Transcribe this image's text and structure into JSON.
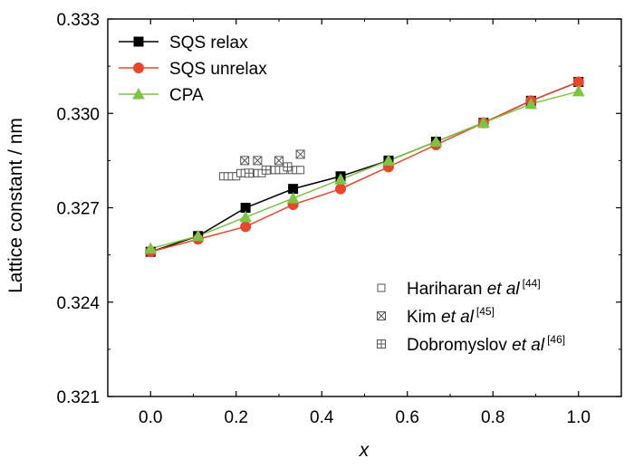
{
  "chart_data": {
    "type": "line",
    "title": "",
    "xlabel": "x",
    "ylabel": "Lattice constant / nm",
    "xlim": [
      -0.1,
      1.1
    ],
    "ylim": [
      0.321,
      0.333
    ],
    "xticks": [
      0.0,
      0.2,
      0.4,
      0.6,
      0.8,
      1.0
    ],
    "xtick_labels": [
      "0.0",
      "0.2",
      "0.4",
      "0.6",
      "0.8",
      "1.0"
    ],
    "yticks": [
      0.321,
      0.324,
      0.327,
      0.33,
      0.333
    ],
    "ytick_labels": [
      "0.321",
      "0.324",
      "0.327",
      "0.330",
      "0.333"
    ],
    "grid": false,
    "legend_position": "top-left",
    "series": [
      {
        "name": "SQS relax",
        "color": "#000000",
        "marker": "square-filled",
        "x": [
          0.0,
          0.111,
          0.222,
          0.333,
          0.444,
          0.556,
          0.667,
          0.778,
          0.889,
          1.0
        ],
        "y": [
          0.3256,
          0.3261,
          0.327,
          0.3276,
          0.328,
          0.3285,
          0.3291,
          0.3297,
          0.3304,
          0.331
        ]
      },
      {
        "name": "SQS unrelax",
        "color": "#e8472b",
        "marker": "circle-filled",
        "x": [
          0.0,
          0.111,
          0.222,
          0.333,
          0.444,
          0.556,
          0.667,
          0.778,
          0.889,
          1.0
        ],
        "y": [
          0.3256,
          0.326,
          0.3264,
          0.3271,
          0.3276,
          0.3283,
          0.329,
          0.3297,
          0.3304,
          0.331
        ]
      },
      {
        "name": "CPA",
        "color": "#7cc444",
        "marker": "triangle-filled",
        "x": [
          0.0,
          0.111,
          0.222,
          0.333,
          0.444,
          0.556,
          0.667,
          0.778,
          0.889,
          1.0
        ],
        "y": [
          0.3257,
          0.3261,
          0.3267,
          0.3273,
          0.3279,
          0.3285,
          0.3291,
          0.3297,
          0.3303,
          0.3307
        ]
      },
      {
        "name": "Hariharan et al [44]",
        "color": "#555555",
        "marker": "square-open",
        "x": [
          0.17,
          0.18,
          0.19,
          0.2,
          0.21,
          0.22,
          0.23,
          0.24,
          0.25,
          0.26,
          0.27,
          0.28,
          0.29,
          0.3,
          0.31,
          0.32,
          0.33,
          0.34,
          0.35
        ],
        "y": [
          0.328,
          0.328,
          0.328,
          0.328,
          0.3281,
          0.3281,
          0.3281,
          0.3281,
          0.3281,
          0.3281,
          0.3282,
          0.3282,
          0.3282,
          0.3282,
          0.3282,
          0.3283,
          0.3282,
          0.3282,
          0.3282
        ]
      },
      {
        "name": "Kim et al [45]",
        "color": "#555555",
        "marker": "square-x",
        "x": [
          0.22,
          0.25,
          0.3,
          0.35
        ],
        "y": [
          0.3285,
          0.3285,
          0.3285,
          0.3287
        ]
      },
      {
        "name": "Dobromyslov et al [46]",
        "color": "#555555",
        "marker": "square-plus",
        "x": [
          0.23,
          0.27,
          0.32
        ],
        "y": [
          0.3281,
          0.3282,
          0.3283
        ]
      }
    ],
    "legend_top": [
      {
        "label": "SQS relax",
        "color": "#000000",
        "marker": "square-filled"
      },
      {
        "label": "SQS unrelax",
        "color": "#e8472b",
        "marker": "circle-filled"
      },
      {
        "label": "CPA",
        "color": "#7cc444",
        "marker": "triangle-filled"
      }
    ],
    "legend_refs": [
      {
        "name": "Hariharan",
        "etal": "et al",
        "ref": "[44]",
        "marker": "square-open"
      },
      {
        "name": "Kim",
        "etal": "et al",
        "ref": "[45]",
        "marker": "square-x"
      },
      {
        "name": "Dobromyslov",
        "etal": "et al",
        "ref": "[46]",
        "marker": "square-plus"
      }
    ]
  }
}
